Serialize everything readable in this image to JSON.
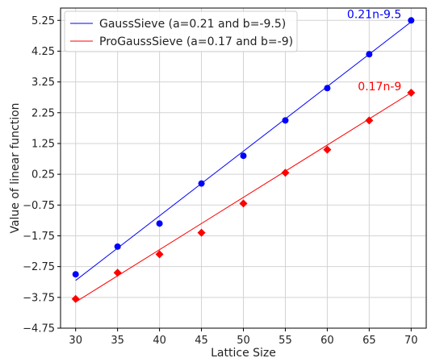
{
  "chart_data": {
    "type": "scatter",
    "xlabel": "Lattice Size",
    "ylabel": "Value of linear function",
    "xlim": [
      28.2,
      71.8
    ],
    "ylim": [
      -4.75,
      5.65
    ],
    "xticks": [
      30,
      35,
      40,
      45,
      50,
      55,
      60,
      65,
      70
    ],
    "xtick_labels": [
      "30",
      "35",
      "40",
      "45",
      "50",
      "55",
      "60",
      "65",
      "70"
    ],
    "yticks": [
      -4.75,
      -3.75,
      -2.75,
      -1.75,
      -0.75,
      0.25,
      1.25,
      2.25,
      3.25,
      4.25,
      5.25
    ],
    "ytick_labels": [
      "−4.75",
      "−3.75",
      "−2.75",
      "−1.75",
      "−0.75",
      "0.25",
      "1.25",
      "2.25",
      "3.25",
      "4.25",
      "5.25"
    ],
    "grid": true,
    "legend_position": "top-left",
    "series": [
      {
        "name": "GaussSieve (a=0.21 and b=-9.5)",
        "color": "#0000ff",
        "marker": "circle",
        "x": [
          30,
          35,
          40,
          45,
          50,
          55,
          60,
          65,
          70
        ],
        "y": [
          -3.0,
          -2.1,
          -1.35,
          -0.05,
          0.85,
          2.0,
          3.05,
          4.15,
          5.25
        ],
        "fit": {
          "a": 0.21,
          "b": -9.5,
          "x_range": [
            30,
            70
          ]
        }
      },
      {
        "name": "ProGaussSieve (a=0.17 and b=-9)",
        "color": "#ff0000",
        "marker": "diamond",
        "x": [
          30,
          35,
          40,
          45,
          50,
          55,
          60,
          65,
          70
        ],
        "y": [
          -3.8,
          -2.95,
          -2.35,
          -1.65,
          -0.7,
          0.3,
          1.05,
          2.0,
          2.9
        ],
        "fit": {
          "a": 0.17,
          "b": -9,
          "x_range": [
            30,
            70
          ]
        }
      }
    ],
    "annotations": [
      {
        "text": "0.21n-9.5",
        "color": "#0000ff",
        "x": 70,
        "y": 5.25
      },
      {
        "text": "0.17n-9",
        "color": "#ff0000",
        "x": 70,
        "y": 2.9
      }
    ]
  }
}
